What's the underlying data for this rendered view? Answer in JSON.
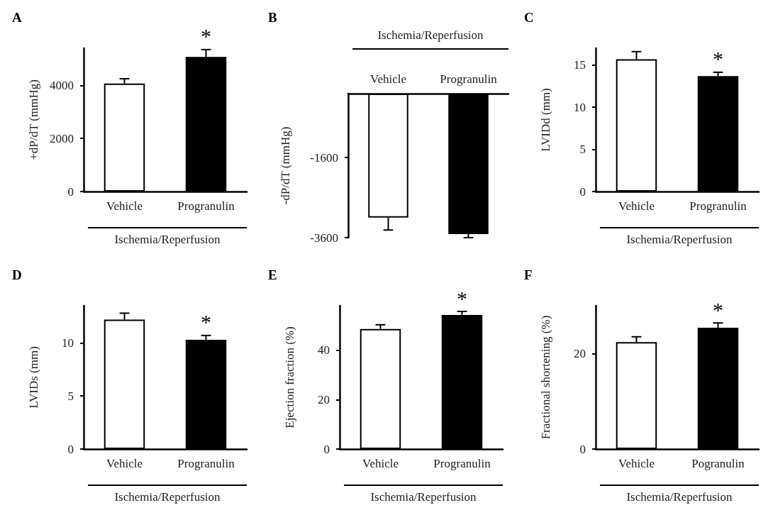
{
  "chart_data": [
    {
      "type": "bar",
      "title": "A",
      "ylabel": "+dP/dT (mmHg)",
      "xlabel": "Ischemia/Reperfusion",
      "categories": [
        "Vehicle",
        "Progranulin"
      ],
      "values": [
        4070,
        5070
      ],
      "errors": [
        180,
        280
      ],
      "colors": [
        "#ffffff",
        "#000000"
      ],
      "ylim": [
        0,
        5400
      ],
      "yticks": [
        0,
        2000,
        4000
      ],
      "grid": false,
      "annotations": [
        {
          "text": "*",
          "x": "Progranulin",
          "y": 5350
        }
      ]
    },
    {
      "type": "bar",
      "title": "B",
      "ylabel": "-dP/dT (mmHg)",
      "xlabel": "Ischemia/Reperfusion",
      "categories": [
        "Vehicle",
        "Progranulin"
      ],
      "values": [
        -3100,
        -3510
      ],
      "errors": [
        310,
        90
      ],
      "colors": [
        "#ffffff",
        "#000000"
      ],
      "ylim": [
        -3600,
        0
      ],
      "yticks": [
        -1600,
        -3600
      ],
      "grid": false
    },
    {
      "type": "bar",
      "title": "C",
      "ylabel": "LVIDd (mm)",
      "xlabel": "Ischemia/Reperfusion",
      "categories": [
        "Vehicle",
        "Progranulin"
      ],
      "values": [
        15.7,
        13.7
      ],
      "errors": [
        0.9,
        0.45
      ],
      "colors": [
        "#ffffff",
        "#000000"
      ],
      "ylim": [
        0,
        17
      ],
      "yticks": [
        0,
        5,
        10,
        15
      ],
      "grid": false,
      "annotations": [
        {
          "text": "*",
          "x": "Progranulin",
          "y": 14.2
        }
      ]
    },
    {
      "type": "bar",
      "title": "D",
      "ylabel": "LVIDs (mm)",
      "xlabel": "Ischemia/Reperfusion",
      "categories": [
        "Vehicle",
        "Progranulin"
      ],
      "values": [
        12.2,
        10.3
      ],
      "errors": [
        0.6,
        0.4
      ],
      "colors": [
        "#ffffff",
        "#000000"
      ],
      "ylim": [
        0,
        13.5
      ],
      "yticks": [
        0,
        5,
        10
      ],
      "grid": false,
      "annotations": [
        {
          "text": "*",
          "x": "Progranulin",
          "y": 10.7
        }
      ]
    },
    {
      "type": "bar",
      "title": "E",
      "ylabel": "Ejection fraction (%)",
      "xlabel": "Ischemia/Reperfusion",
      "categories": [
        "Vehicle",
        "Progranulin"
      ],
      "values": [
        48.6,
        54.3
      ],
      "errors": [
        1.7,
        1.4
      ],
      "colors": [
        "#ffffff",
        "#000000"
      ],
      "ylim": [
        0,
        58
      ],
      "yticks": [
        0,
        20,
        40
      ],
      "grid": false,
      "annotations": [
        {
          "text": "*",
          "x": "Progranulin",
          "y": 55.7
        }
      ]
    },
    {
      "type": "bar",
      "title": "F",
      "ylabel": "Fractional shortening (%)",
      "xlabel": "Ischemia/Reperfusion",
      "categories": [
        "Vehicle",
        "Pogranulin"
      ],
      "values": [
        22.4,
        25.4
      ],
      "errors": [
        1.1,
        1.0
      ],
      "colors": [
        "#ffffff",
        "#000000"
      ],
      "ylim": [
        0,
        30
      ],
      "yticks": [
        0,
        20
      ],
      "grid": false,
      "annotations": [
        {
          "text": "*",
          "x": "Pogranulin",
          "y": 26.4
        }
      ]
    }
  ]
}
